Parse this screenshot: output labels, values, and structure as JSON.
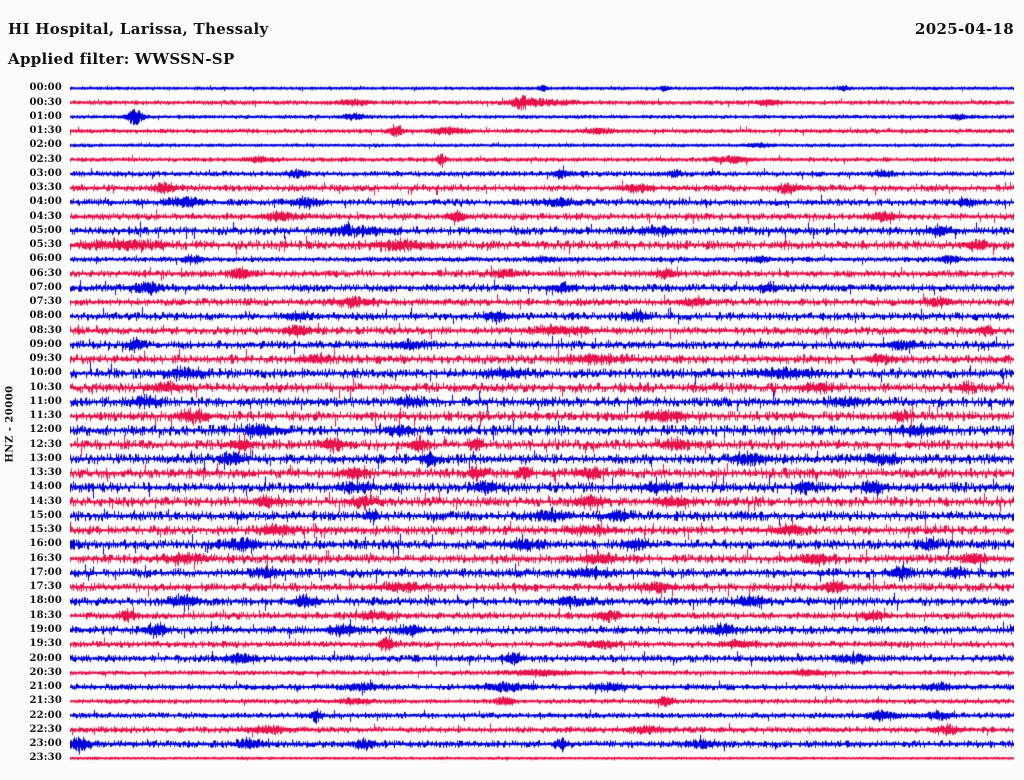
{
  "header": {
    "title": "HI Hospital, Larissa, Thessaly",
    "filter": "Applied filter: WWSSN-SP",
    "date": "2025-04-18"
  },
  "chart_data": {
    "type": "line",
    "subtype": "helicorder-seismogram",
    "title": "HI Hospital, Larissa, Thessaly",
    "filter": "Applied filter: WWSSN-SP",
    "date": "2025-04-18",
    "station_label": "HNZ - 20000",
    "minutes_per_row": 30,
    "rows_per_day": 48,
    "legend": "none",
    "grid": false,
    "background": "#fcfcfa",
    "trace_colors": {
      "blue": "#0000dd",
      "red": "#e8114a"
    },
    "rows": [
      {
        "time": "00:00",
        "color": "blue",
        "noise": 0.5,
        "events": [
          [
            0.5,
            1.4,
            0.003
          ],
          [
            0.63,
            1.3,
            0.003
          ],
          [
            0.82,
            1.2,
            0.004
          ]
        ]
      },
      {
        "time": "00:30",
        "color": "red",
        "noise": 0.8,
        "events": [
          [
            0.477,
            3.2,
            0.006
          ],
          [
            0.5,
            1.6,
            0.02
          ],
          [
            0.3,
            1.2,
            0.01
          ],
          [
            0.74,
            1.4,
            0.008
          ]
        ]
      },
      {
        "time": "01:00",
        "color": "blue",
        "noise": 0.6,
        "events": [
          [
            0.068,
            4.2,
            0.006
          ],
          [
            0.3,
            1.3,
            0.008
          ],
          [
            0.94,
            1.4,
            0.006
          ]
        ]
      },
      {
        "time": "01:30",
        "color": "red",
        "noise": 0.8,
        "events": [
          [
            0.345,
            3.4,
            0.0045
          ],
          [
            0.4,
            1.8,
            0.012
          ],
          [
            0.56,
            1.2,
            0.01
          ]
        ]
      },
      {
        "time": "02:00",
        "color": "blue",
        "noise": 0.5,
        "events": [
          [
            0.73,
            1.0,
            0.008
          ]
        ]
      },
      {
        "time": "02:30",
        "color": "red",
        "noise": 0.8,
        "events": [
          [
            0.393,
            3.8,
            0.003
          ],
          [
            0.7,
            1.6,
            0.012
          ],
          [
            0.2,
            1.2,
            0.01
          ]
        ]
      },
      {
        "time": "03:00",
        "color": "blue",
        "noise": 1.0,
        "events": [
          [
            0.24,
            2.0,
            0.006
          ],
          [
            0.52,
            2.0,
            0.005
          ],
          [
            0.64,
            1.8,
            0.005
          ],
          [
            0.86,
            1.6,
            0.006
          ]
        ]
      },
      {
        "time": "03:30",
        "color": "red",
        "noise": 1.4,
        "events": [
          [
            0.1,
            2.4,
            0.008
          ],
          [
            0.6,
            1.8,
            0.01
          ],
          [
            0.76,
            2.4,
            0.008
          ]
        ]
      },
      {
        "time": "04:00",
        "color": "blue",
        "noise": 1.4,
        "events": [
          [
            0.12,
            2.4,
            0.012
          ],
          [
            0.25,
            2.4,
            0.01
          ],
          [
            0.52,
            1.8,
            0.01
          ],
          [
            0.95,
            1.8,
            0.008
          ]
        ]
      },
      {
        "time": "04:30",
        "color": "red",
        "noise": 1.4,
        "events": [
          [
            0.41,
            2.8,
            0.006
          ],
          [
            0.22,
            1.8,
            0.012
          ],
          [
            0.86,
            2.0,
            0.01
          ]
        ]
      },
      {
        "time": "05:00",
        "color": "blue",
        "noise": 1.8,
        "events": [
          [
            0.3,
            1.8,
            0.02
          ],
          [
            0.62,
            1.6,
            0.015
          ],
          [
            0.92,
            2.0,
            0.01
          ]
        ]
      },
      {
        "time": "05:30",
        "color": "red",
        "noise": 2.0,
        "events": [
          [
            0.06,
            2.2,
            0.025
          ],
          [
            0.35,
            1.8,
            0.02
          ],
          [
            0.96,
            2.2,
            0.008
          ]
        ]
      },
      {
        "time": "06:00",
        "color": "blue",
        "noise": 1.0,
        "events": [
          [
            0.13,
            2.2,
            0.006
          ],
          [
            0.5,
            1.5,
            0.008
          ],
          [
            0.73,
            1.4,
            0.008
          ],
          [
            0.93,
            2.2,
            0.006
          ]
        ]
      },
      {
        "time": "06:30",
        "color": "red",
        "noise": 1.5,
        "events": [
          [
            0.18,
            2.8,
            0.008
          ],
          [
            0.46,
            1.8,
            0.01
          ],
          [
            0.63,
            2.0,
            0.008
          ]
        ]
      },
      {
        "time": "07:00",
        "color": "blue",
        "noise": 1.6,
        "events": [
          [
            0.08,
            2.8,
            0.01
          ],
          [
            0.52,
            1.8,
            0.01
          ],
          [
            0.74,
            1.8,
            0.008
          ]
        ]
      },
      {
        "time": "07:30",
        "color": "red",
        "noise": 1.6,
        "events": [
          [
            0.3,
            1.8,
            0.015
          ],
          [
            0.66,
            2.0,
            0.01
          ],
          [
            0.92,
            1.8,
            0.01
          ]
        ]
      },
      {
        "time": "08:00",
        "color": "blue",
        "noise": 1.7,
        "events": [
          [
            0.45,
            2.5,
            0.008
          ],
          [
            0.6,
            2.5,
            0.008
          ],
          [
            0.24,
            1.8,
            0.01
          ]
        ]
      },
      {
        "time": "08:30",
        "color": "red",
        "noise": 1.7,
        "events": [
          [
            0.24,
            2.8,
            0.008
          ],
          [
            0.52,
            1.8,
            0.02
          ],
          [
            0.97,
            2.2,
            0.006
          ]
        ]
      },
      {
        "time": "09:00",
        "color": "blue",
        "noise": 1.8,
        "events": [
          [
            0.07,
            2.8,
            0.006
          ],
          [
            0.36,
            1.8,
            0.012
          ],
          [
            0.88,
            2.0,
            0.01
          ]
        ]
      },
      {
        "time": "09:30",
        "color": "red",
        "noise": 2.0,
        "events": [
          [
            0.26,
            2.2,
            0.01
          ],
          [
            0.56,
            1.8,
            0.02
          ],
          [
            0.86,
            2.0,
            0.01
          ]
        ]
      },
      {
        "time": "10:00",
        "color": "blue",
        "noise": 2.2,
        "events": [
          [
            0.12,
            2.2,
            0.015
          ],
          [
            0.46,
            1.8,
            0.015
          ],
          [
            0.76,
            2.0,
            0.02
          ]
        ]
      },
      {
        "time": "10:30",
        "color": "red",
        "noise": 2.2,
        "events": [
          [
            0.1,
            2.4,
            0.012
          ],
          [
            0.79,
            2.2,
            0.012
          ],
          [
            0.95,
            2.5,
            0.006
          ]
        ]
      },
      {
        "time": "11:00",
        "color": "blue",
        "noise": 2.2,
        "events": [
          [
            0.08,
            2.5,
            0.01
          ],
          [
            0.36,
            2.5,
            0.008
          ],
          [
            0.82,
            2.4,
            0.01
          ]
        ]
      },
      {
        "time": "11:30",
        "color": "red",
        "noise": 2.2,
        "events": [
          [
            0.13,
            2.9,
            0.01
          ],
          [
            0.63,
            2.2,
            0.015
          ],
          [
            0.88,
            2.7,
            0.006
          ]
        ]
      },
      {
        "time": "12:00",
        "color": "blue",
        "noise": 2.3,
        "events": [
          [
            0.2,
            2.4,
            0.012
          ],
          [
            0.35,
            2.5,
            0.008
          ],
          [
            0.9,
            2.2,
            0.015
          ]
        ]
      },
      {
        "time": "12:30",
        "color": "red",
        "noise": 2.3,
        "events": [
          [
            0.18,
            2.5,
            0.008
          ],
          [
            0.28,
            2.5,
            0.008
          ],
          [
            0.37,
            3.4,
            0.006
          ],
          [
            0.43,
            3.0,
            0.005
          ],
          [
            0.64,
            2.5,
            0.01
          ]
        ]
      },
      {
        "time": "13:00",
        "color": "blue",
        "noise": 2.3,
        "events": [
          [
            0.17,
            3.2,
            0.008
          ],
          [
            0.38,
            3.0,
            0.006
          ],
          [
            0.72,
            2.5,
            0.012
          ],
          [
            0.86,
            2.4,
            0.01
          ]
        ]
      },
      {
        "time": "13:30",
        "color": "red",
        "noise": 2.3,
        "events": [
          [
            0.3,
            2.7,
            0.008
          ],
          [
            0.43,
            3.5,
            0.005
          ],
          [
            0.48,
            2.9,
            0.005
          ],
          [
            0.55,
            2.3,
            0.01
          ]
        ]
      },
      {
        "time": "14:00",
        "color": "blue",
        "noise": 2.3,
        "events": [
          [
            0.3,
            2.5,
            0.01
          ],
          [
            0.44,
            2.7,
            0.008
          ],
          [
            0.62,
            2.5,
            0.01
          ],
          [
            0.78,
            2.9,
            0.008
          ],
          [
            0.85,
            2.7,
            0.008
          ]
        ]
      },
      {
        "time": "14:30",
        "color": "red",
        "noise": 2.2,
        "events": [
          [
            0.21,
            2.5,
            0.01
          ],
          [
            0.31,
            2.5,
            0.01
          ],
          [
            0.55,
            2.7,
            0.01
          ],
          [
            0.64,
            2.3,
            0.012
          ]
        ]
      },
      {
        "time": "15:00",
        "color": "blue",
        "noise": 2.2,
        "events": [
          [
            0.32,
            3.3,
            0.004
          ],
          [
            0.51,
            2.3,
            0.012
          ],
          [
            0.58,
            2.5,
            0.008
          ]
        ]
      },
      {
        "time": "15:30",
        "color": "red",
        "noise": 2.0,
        "events": [
          [
            0.22,
            2.3,
            0.012
          ],
          [
            0.55,
            1.9,
            0.015
          ],
          [
            0.76,
            2.2,
            0.012
          ]
        ]
      },
      {
        "time": "16:00",
        "color": "blue",
        "noise": 2.2,
        "events": [
          [
            0.18,
            2.3,
            0.012
          ],
          [
            0.48,
            2.3,
            0.012
          ],
          [
            0.6,
            2.9,
            0.008
          ],
          [
            0.91,
            2.5,
            0.008
          ]
        ]
      },
      {
        "time": "16:30",
        "color": "red",
        "noise": 2.0,
        "events": [
          [
            0.12,
            2.2,
            0.015
          ],
          [
            0.56,
            2.3,
            0.012
          ],
          [
            0.79,
            2.2,
            0.012
          ],
          [
            0.96,
            2.4,
            0.008
          ]
        ]
      },
      {
        "time": "17:00",
        "color": "blue",
        "noise": 2.0,
        "events": [
          [
            0.21,
            2.7,
            0.008
          ],
          [
            0.55,
            2.2,
            0.012
          ],
          [
            0.88,
            2.9,
            0.008
          ],
          [
            0.94,
            2.5,
            0.006
          ]
        ]
      },
      {
        "time": "17:30",
        "color": "red",
        "noise": 1.9,
        "events": [
          [
            0.35,
            2.0,
            0.015
          ],
          [
            0.62,
            2.0,
            0.012
          ],
          [
            0.81,
            2.7,
            0.008
          ]
        ]
      },
      {
        "time": "18:00",
        "color": "blue",
        "noise": 1.9,
        "events": [
          [
            0.12,
            2.7,
            0.01
          ],
          [
            0.25,
            2.5,
            0.008
          ],
          [
            0.53,
            2.1,
            0.012
          ],
          [
            0.72,
            2.0,
            0.012
          ]
        ]
      },
      {
        "time": "18:30",
        "color": "red",
        "noise": 1.5,
        "events": [
          [
            0.06,
            2.7,
            0.006
          ],
          [
            0.32,
            1.8,
            0.012
          ],
          [
            0.57,
            2.3,
            0.008
          ],
          [
            0.85,
            1.8,
            0.01
          ]
        ]
      },
      {
        "time": "19:00",
        "color": "blue",
        "noise": 1.8,
        "events": [
          [
            0.09,
            2.9,
            0.008
          ],
          [
            0.29,
            2.2,
            0.01
          ],
          [
            0.36,
            2.5,
            0.008
          ],
          [
            0.69,
            2.2,
            0.01
          ]
        ]
      },
      {
        "time": "19:30",
        "color": "red",
        "noise": 1.3,
        "events": [
          [
            0.335,
            4.0,
            0.005
          ],
          [
            0.56,
            1.7,
            0.012
          ],
          [
            0.71,
            1.6,
            0.012
          ]
        ]
      },
      {
        "time": "20:00",
        "color": "blue",
        "noise": 1.5,
        "events": [
          [
            0.18,
            2.5,
            0.01
          ],
          [
            0.47,
            2.7,
            0.006
          ],
          [
            0.83,
            2.1,
            0.01
          ]
        ]
      },
      {
        "time": "20:30",
        "color": "red",
        "noise": 0.9,
        "events": [
          [
            0.5,
            1.3,
            0.02
          ],
          [
            0.78,
            1.2,
            0.015
          ]
        ]
      },
      {
        "time": "21:00",
        "color": "blue",
        "noise": 1.2,
        "events": [
          [
            0.31,
            1.6,
            0.012
          ],
          [
            0.46,
            2.1,
            0.015
          ],
          [
            0.57,
            1.9,
            0.01
          ],
          [
            0.92,
            1.6,
            0.01
          ]
        ]
      },
      {
        "time": "21:30",
        "color": "red",
        "noise": 0.9,
        "events": [
          [
            0.46,
            2.3,
            0.006
          ],
          [
            0.63,
            2.5,
            0.006
          ],
          [
            0.3,
            1.3,
            0.012
          ]
        ]
      },
      {
        "time": "22:00",
        "color": "blue",
        "noise": 1.1,
        "events": [
          [
            0.26,
            3.7,
            0.004
          ],
          [
            0.86,
            2.3,
            0.01
          ],
          [
            0.92,
            2.1,
            0.008
          ]
        ]
      },
      {
        "time": "22:30",
        "color": "red",
        "noise": 1.2,
        "events": [
          [
            0.21,
            1.7,
            0.015
          ],
          [
            0.61,
            1.7,
            0.015
          ],
          [
            0.93,
            1.9,
            0.01
          ]
        ]
      },
      {
        "time": "23:00",
        "color": "blue",
        "noise": 1.5,
        "events": [
          [
            0.01,
            3.3,
            0.008
          ],
          [
            0.19,
            2.3,
            0.01
          ],
          [
            0.31,
            2.1,
            0.008
          ],
          [
            0.52,
            2.9,
            0.004
          ],
          [
            0.67,
            1.9,
            0.01
          ]
        ]
      },
      {
        "time": "23:30",
        "color": "red",
        "noise": 0.3,
        "events": []
      }
    ]
  }
}
